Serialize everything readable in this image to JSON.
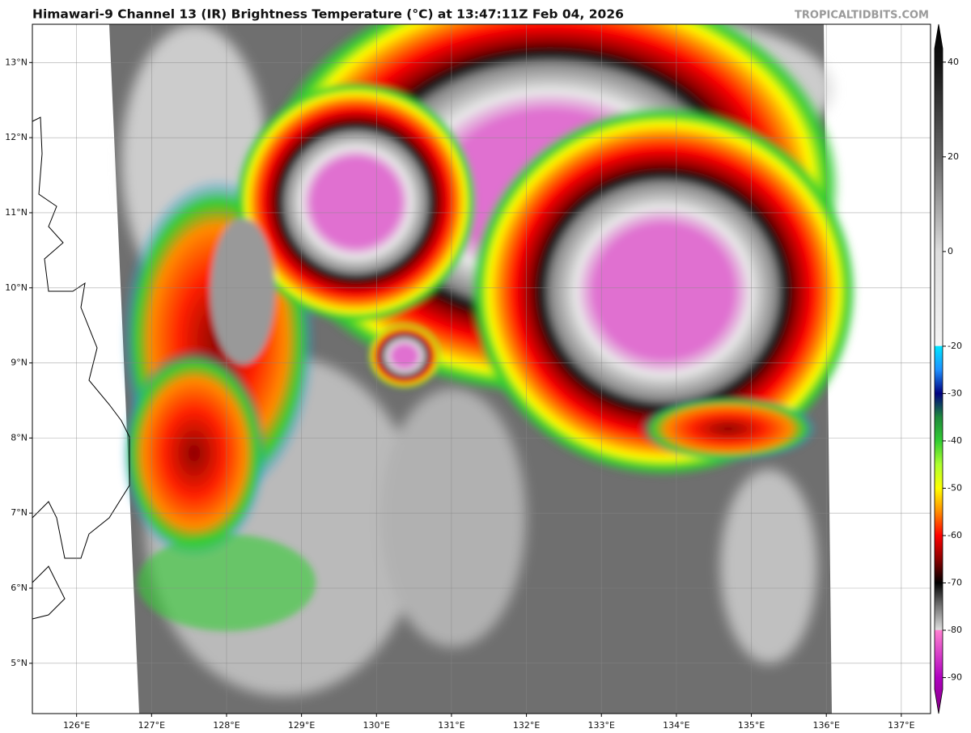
{
  "header": {
    "title": "Himawari-9 Channel 13 (IR) Brightness Temperature (°C) at 13:47:11Z Feb 04, 2026",
    "credit": "TROPICALTIDBITS.COM"
  },
  "map": {
    "lon_range": [
      125.41,
      137.39
    ],
    "lat_range": [
      4.33,
      13.51
    ],
    "lon_ticks": [
      {
        "value": 126,
        "label": "126°E"
      },
      {
        "value": 127,
        "label": "127°E"
      },
      {
        "value": 128,
        "label": "128°E"
      },
      {
        "value": 129,
        "label": "129°E"
      },
      {
        "value": 130,
        "label": "130°E"
      },
      {
        "value": 131,
        "label": "131°E"
      },
      {
        "value": 132,
        "label": "132°E"
      },
      {
        "value": 133,
        "label": "133°E"
      },
      {
        "value": 134,
        "label": "134°E"
      },
      {
        "value": 135,
        "label": "135°E"
      },
      {
        "value": 136,
        "label": "136°E"
      },
      {
        "value": 137,
        "label": "137°E"
      }
    ],
    "lat_ticks": [
      {
        "value": 13,
        "label": "13°N"
      },
      {
        "value": 12,
        "label": "12°N"
      },
      {
        "value": 11,
        "label": "11°N"
      },
      {
        "value": 10,
        "label": "10°N"
      },
      {
        "value": 9,
        "label": "9°N"
      },
      {
        "value": 8,
        "label": "8°N"
      },
      {
        "value": 7,
        "label": "7°N"
      },
      {
        "value": 6,
        "label": "6°N"
      },
      {
        "value": 5,
        "label": "5°N"
      }
    ]
  },
  "colorbar": {
    "range": [
      -97.6,
      48
    ],
    "ticks": [
      40,
      20,
      0,
      -20,
      -30,
      -40,
      -50,
      -60,
      -70,
      -80,
      -90
    ],
    "stops": [
      {
        "value": 48,
        "color": "#000000"
      },
      {
        "value": 40,
        "color": "#111111"
      },
      {
        "value": 20,
        "color": "#666666"
      },
      {
        "value": 0,
        "color": "#dddddd"
      },
      {
        "value": -19.9,
        "color": "#f5f5f5"
      },
      {
        "value": -20,
        "color": "#00e5ff"
      },
      {
        "value": -25,
        "color": "#1e90ff"
      },
      {
        "value": -30,
        "color": "#000080"
      },
      {
        "value": -35,
        "color": "#1e8a3c"
      },
      {
        "value": -40,
        "color": "#32cd32"
      },
      {
        "value": -45,
        "color": "#adff2f"
      },
      {
        "value": -50,
        "color": "#ffff00"
      },
      {
        "value": -55,
        "color": "#ff8c00"
      },
      {
        "value": -60,
        "color": "#ff0000"
      },
      {
        "value": -65,
        "color": "#8b0000"
      },
      {
        "value": -70,
        "color": "#000000"
      },
      {
        "value": -75,
        "color": "#777777"
      },
      {
        "value": -79.9,
        "color": "#dddddd"
      },
      {
        "value": -80,
        "color": "#ff80d0"
      },
      {
        "value": -90,
        "color": "#b000c0"
      },
      {
        "value": -97.6,
        "color": "#800080"
      }
    ]
  }
}
